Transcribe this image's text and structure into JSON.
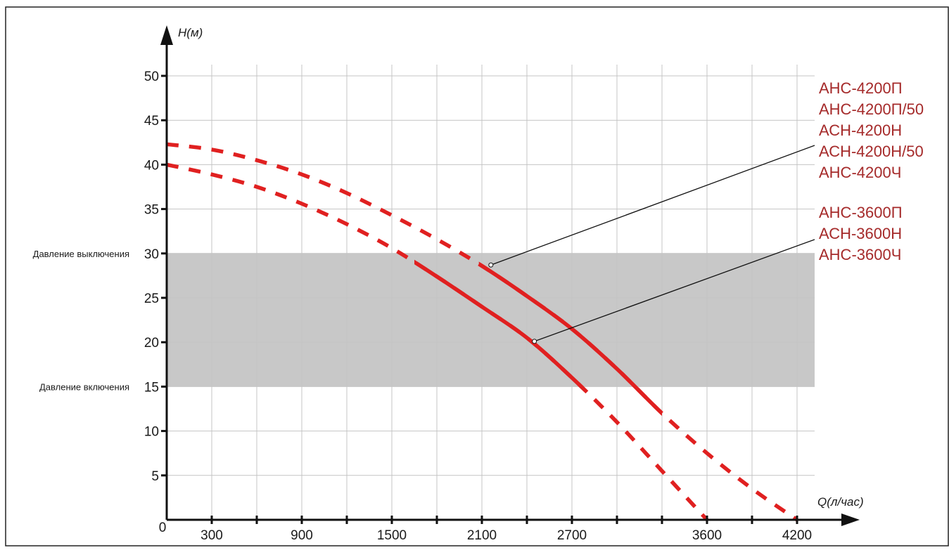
{
  "chart_data": {
    "type": "line",
    "xlabel": "Q(л/час)",
    "ylabel": "H(м)",
    "origin_label": "0",
    "xlim": [
      0,
      4200
    ],
    "ylim": [
      0,
      50
    ],
    "x_tick_labels": [
      {
        "value": 300,
        "text": "300"
      },
      {
        "value": 900,
        "text": "900"
      },
      {
        "value": 1500,
        "text": "1500"
      },
      {
        "value": 2100,
        "text": "2100"
      },
      {
        "value": 2700,
        "text": "2700"
      },
      {
        "value": 3600,
        "text": "3600"
      },
      {
        "value": 4200,
        "text": "4200"
      }
    ],
    "x_tick_marks": [
      300,
      600,
      900,
      1200,
      1500,
      1800,
      2100,
      2400,
      2700,
      3000,
      3300,
      3600,
      3900,
      4200
    ],
    "x_grid": [
      300,
      600,
      900,
      1200,
      1500,
      1800,
      2100,
      2400,
      2700,
      3000,
      3300,
      3600,
      3900,
      4200
    ],
    "y_ticks": [
      5,
      10,
      15,
      20,
      25,
      30,
      35,
      40,
      45,
      50
    ],
    "grid": true,
    "shaded_band": {
      "y_from": 15,
      "y_to": 30,
      "color": "#c8c8c8"
    },
    "zone_labels": [
      {
        "y": 30,
        "text": "Давление выключения"
      },
      {
        "y": 15,
        "text": "Давление включения"
      }
    ],
    "curve_color": "#e02020",
    "label_color": "#a52a2a",
    "series": [
      {
        "curve": [
          [
            0,
            42.3
          ],
          [
            300,
            41.7
          ],
          [
            600,
            40.5
          ],
          [
            900,
            38.9
          ],
          [
            1200,
            36.8
          ],
          [
            1500,
            34.3
          ],
          [
            1800,
            31.6
          ],
          [
            2100,
            28.6
          ],
          [
            2400,
            25.2
          ],
          [
            2700,
            21.5
          ],
          [
            3000,
            17.0
          ],
          [
            3300,
            12.0
          ],
          [
            3600,
            7.5
          ],
          [
            3900,
            3.5
          ],
          [
            4200,
            0
          ]
        ],
        "solid_range": [
          2080,
          3300
        ],
        "marker": {
          "x": 2160,
          "y": 28.7
        },
        "labels": [
          "АНС-4200П",
          "АНС-4200П/50",
          "АСН-4200Н",
          "АСН-4200Н/50",
          "АНС-4200Ч"
        ]
      },
      {
        "curve": [
          [
            0,
            40.0
          ],
          [
            300,
            38.9
          ],
          [
            600,
            37.5
          ],
          [
            900,
            35.6
          ],
          [
            1200,
            33.3
          ],
          [
            1500,
            30.6
          ],
          [
            1800,
            27.4
          ],
          [
            2100,
            24.0
          ],
          [
            2400,
            20.5
          ],
          [
            2700,
            16.0
          ],
          [
            3000,
            11.0
          ],
          [
            3300,
            5.5
          ],
          [
            3600,
            0
          ]
        ],
        "solid_range": [
          1650,
          2780
        ],
        "marker": {
          "x": 2450,
          "y": 20.1
        },
        "labels": [
          "АНС-3600П",
          "АСН-3600Н",
          "АНС-3600Ч"
        ]
      }
    ]
  }
}
